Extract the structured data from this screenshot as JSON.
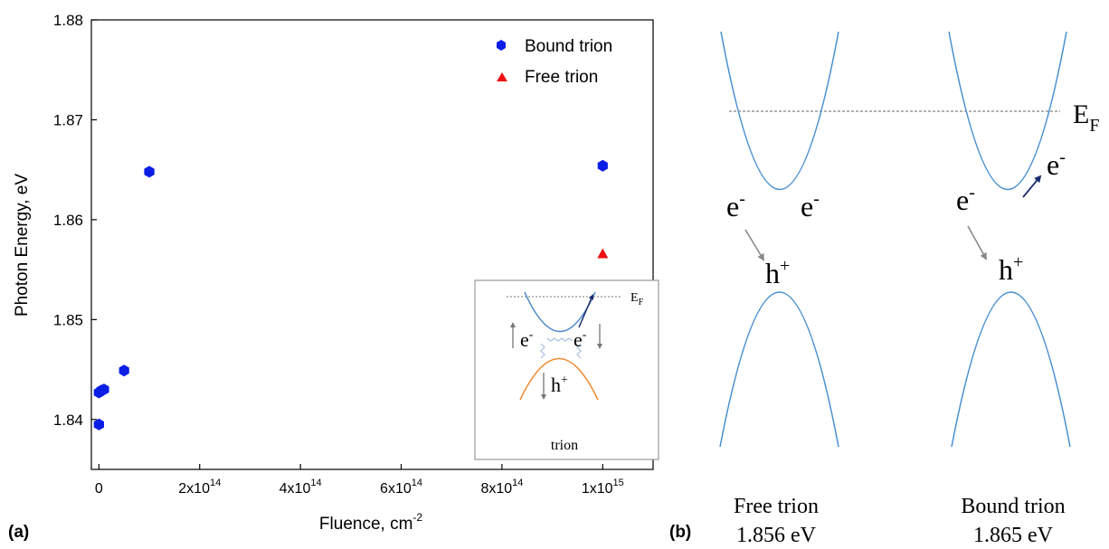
{
  "panel_labels": {
    "a": "(a)",
    "b": "(b)"
  },
  "chart_data": {
    "type": "scatter",
    "xlabel": "Fluence, cm",
    "xlabel_sup": "-2",
    "ylabel": "Photon Energy, eV",
    "xlim": [
      -15000000000000.0,
      1100000000000000.0
    ],
    "ylim": [
      1.835,
      1.88
    ],
    "x_ticks": [
      {
        "value": 0,
        "base": "0",
        "exp": ""
      },
      {
        "value": 200000000000000.0,
        "base": "2x10",
        "exp": "14"
      },
      {
        "value": 400000000000000.0,
        "base": "4x10",
        "exp": "14"
      },
      {
        "value": 600000000000000.0,
        "base": "6x10",
        "exp": "14"
      },
      {
        "value": 800000000000000.0,
        "base": "8x10",
        "exp": "14"
      },
      {
        "value": 1000000000000000.0,
        "base": "1x10",
        "exp": "15"
      }
    ],
    "y_ticks": [
      {
        "value": 1.84,
        "label": "1.84"
      },
      {
        "value": 1.85,
        "label": "1.85"
      },
      {
        "value": 1.86,
        "label": "1.86"
      },
      {
        "value": 1.87,
        "label": "1.87"
      },
      {
        "value": 1.88,
        "label": "1.88"
      }
    ],
    "grid": false,
    "legend_position": "top-right",
    "series": [
      {
        "name": "Bound trion",
        "marker": "hexagon",
        "color": "#0a1ee6",
        "points": [
          {
            "x": 0,
            "y": 1.8395
          },
          {
            "x": 0,
            "y": 1.8427
          },
          {
            "x": 5000000000000.0,
            "y": 1.8429
          },
          {
            "x": 10000000000000.0,
            "y": 1.843
          },
          {
            "x": 50000000000000.0,
            "y": 1.8449
          },
          {
            "x": 100000000000000.0,
            "y": 1.8648
          },
          {
            "x": 1000000000000000.0,
            "y": 1.8654
          }
        ]
      },
      {
        "name": "Free trion",
        "marker": "triangle",
        "color": "#ee1111",
        "points": [
          {
            "x": 1000000000000000.0,
            "y": 1.8566
          }
        ]
      }
    ]
  },
  "inset": {
    "fermi_label": "E",
    "fermi_sub": "F",
    "electron": "e",
    "electron_sup": "-",
    "hole": "h",
    "hole_sup": "+",
    "caption": "trion",
    "colors": {
      "conduction": "#4a86c8",
      "valence": "#f08a30",
      "arrow": "#1a2d6e"
    }
  },
  "diagram_b": {
    "fermi_label": "E",
    "fermi_sub": "F",
    "electron": "e",
    "electron_sup": "-",
    "hole": "h",
    "hole_sup": "+",
    "free": {
      "name": "Free trion",
      "energy": "1.856 eV"
    },
    "bound": {
      "name": "Bound trion",
      "energy": "1.865 eV"
    },
    "colors": {
      "band": "#4a90d0",
      "arrow_gray": "#8a8a8a",
      "arrow_dark": "#1a2d6e",
      "fermi": "#666666"
    }
  }
}
